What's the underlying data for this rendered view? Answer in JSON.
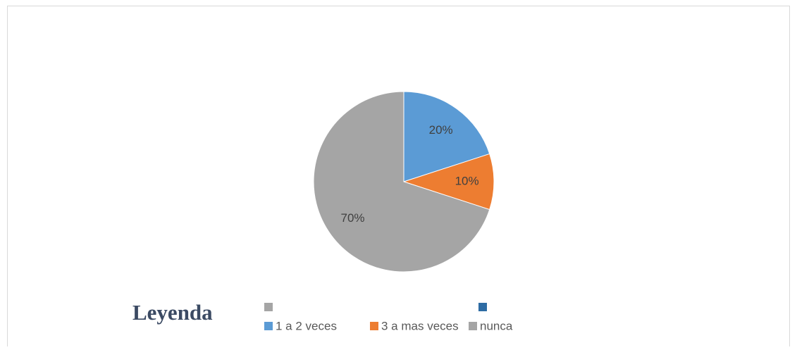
{
  "chart_data": {
    "type": "pie",
    "categories": [
      "1 a 2 veces",
      "3 a mas veces",
      "nunca"
    ],
    "values": [
      20,
      10,
      70
    ],
    "value_labels": [
      "20%",
      "10%",
      "70%"
    ],
    "colors": [
      "#5b9bd5",
      "#ed7d31",
      "#a5a5a5"
    ],
    "legend_title": "Leyenda"
  }
}
